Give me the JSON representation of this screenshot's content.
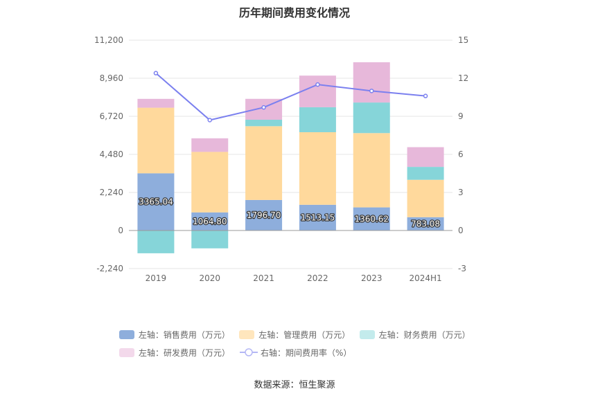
{
  "title": "历年期间费用变化情况",
  "source": "数据来源：恒生聚源",
  "chart_data": {
    "type": "bar",
    "stacked": true,
    "categories": [
      "2019",
      "2020",
      "2021",
      "2022",
      "2023",
      "2024H1"
    ],
    "left_axis": {
      "ticks": [
        "11,200",
        "8,960",
        "6,720",
        "4,480",
        "2,240",
        "0",
        "-2,240"
      ],
      "ylim": [
        -2240,
        11200
      ]
    },
    "right_axis": {
      "ticks": [
        "15",
        "12",
        "9",
        "6",
        "3",
        "0",
        "-3"
      ],
      "ylim": [
        -3,
        15
      ]
    },
    "series": [
      {
        "name": "左轴：销售费用（万元）",
        "axis": "left",
        "type": "bar",
        "color": "#8eaedc",
        "values": [
          3365.04,
          1064.8,
          1796.7,
          1513.15,
          1360.62,
          783.08
        ],
        "labels": [
          "3365.04",
          "1064.80",
          "1796.70",
          "1513.15",
          "1360.62",
          "783.08"
        ]
      },
      {
        "name": "左轴：管理费用（万元）",
        "axis": "left",
        "type": "bar",
        "color": "#ffd99c",
        "values": [
          3860,
          3560,
          4340,
          4270,
          4370,
          2200
        ]
      },
      {
        "name": "左轴：财务费用（万元）",
        "axis": "left",
        "type": "bar",
        "color": "#86d5d9",
        "values": [
          -1340,
          -1050,
          380,
          1470,
          1800,
          760
        ]
      },
      {
        "name": "左轴：研发费用（万元）",
        "axis": "left",
        "type": "bar",
        "color": "#e7b8da",
        "values": [
          520,
          800,
          1230,
          1860,
          2370,
          1160
        ]
      },
      {
        "name": "右轴：期间费用率（%）",
        "axis": "right",
        "type": "line",
        "color": "#7b80ef",
        "values": [
          12.4,
          8.7,
          9.7,
          11.5,
          11.0,
          10.6
        ]
      }
    ],
    "legend_position": "bottom",
    "grid": true
  }
}
